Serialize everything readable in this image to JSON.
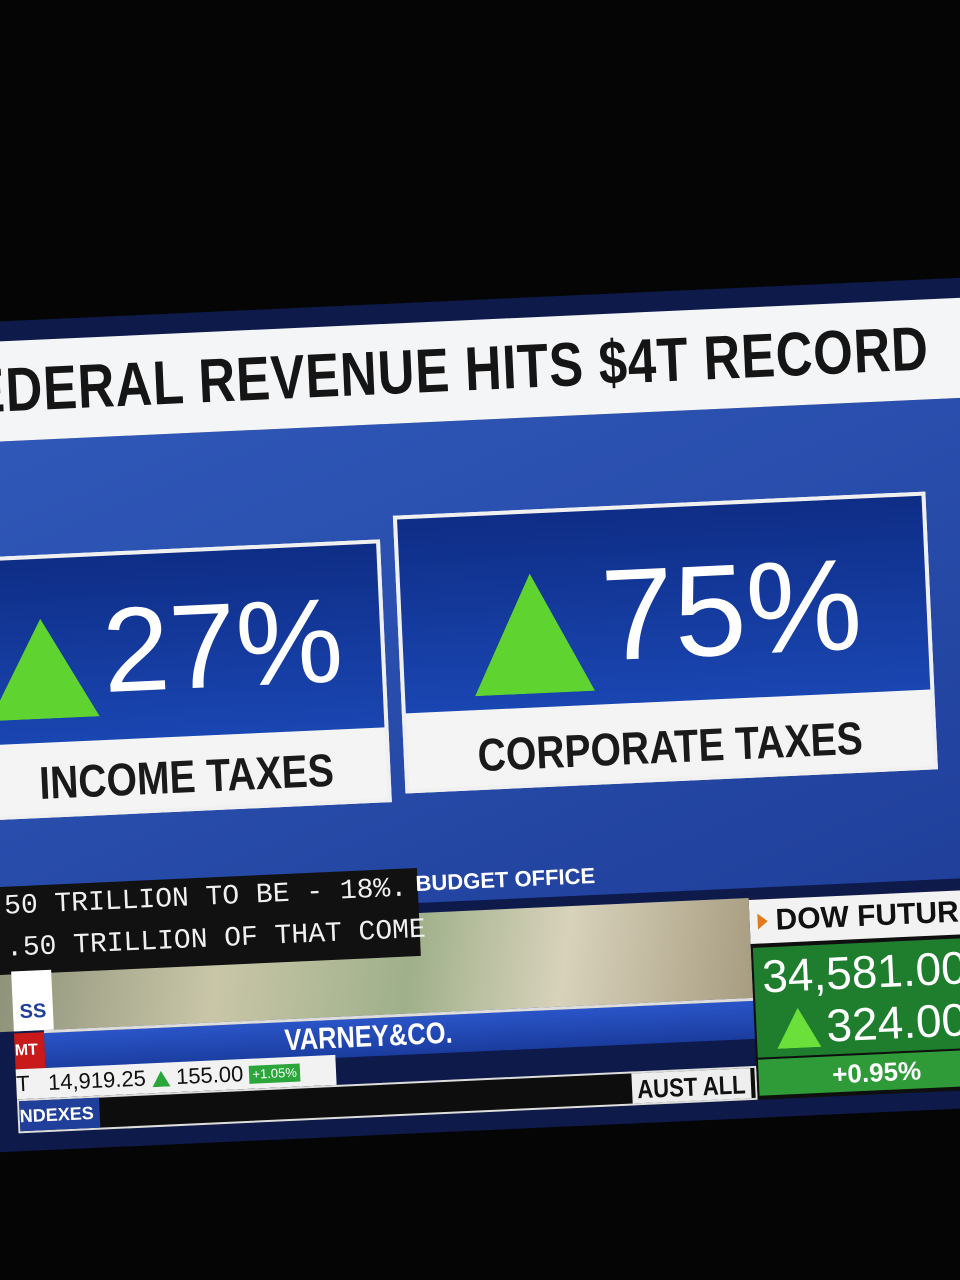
{
  "headline": "EDERAL REVENUE HITS $4T RECORD",
  "panels": [
    {
      "value": "27%",
      "label": "INCOME TAXES"
    },
    {
      "value": "75%",
      "label": "CORPORATE TAXES"
    }
  ],
  "caption": {
    "lines": [
      "50 TRILLION TO BE - 18%.",
      ".50 TRILLION OF THAT COME"
    ],
    "source": "BUDGET OFFICE"
  },
  "network": {
    "logo": "SS",
    "tag": "MT",
    "show": "VARNEY&CO."
  },
  "ticker": {
    "prefix": "T",
    "value": "14,919.25",
    "change": "155.00",
    "percent": "+1.05%",
    "section": "NDEXES",
    "right": "AUST ALL"
  },
  "dow": {
    "title": "DOW FUTURES",
    "price": "34,581.00",
    "change": "324.00",
    "percent": "+0.95%"
  }
}
